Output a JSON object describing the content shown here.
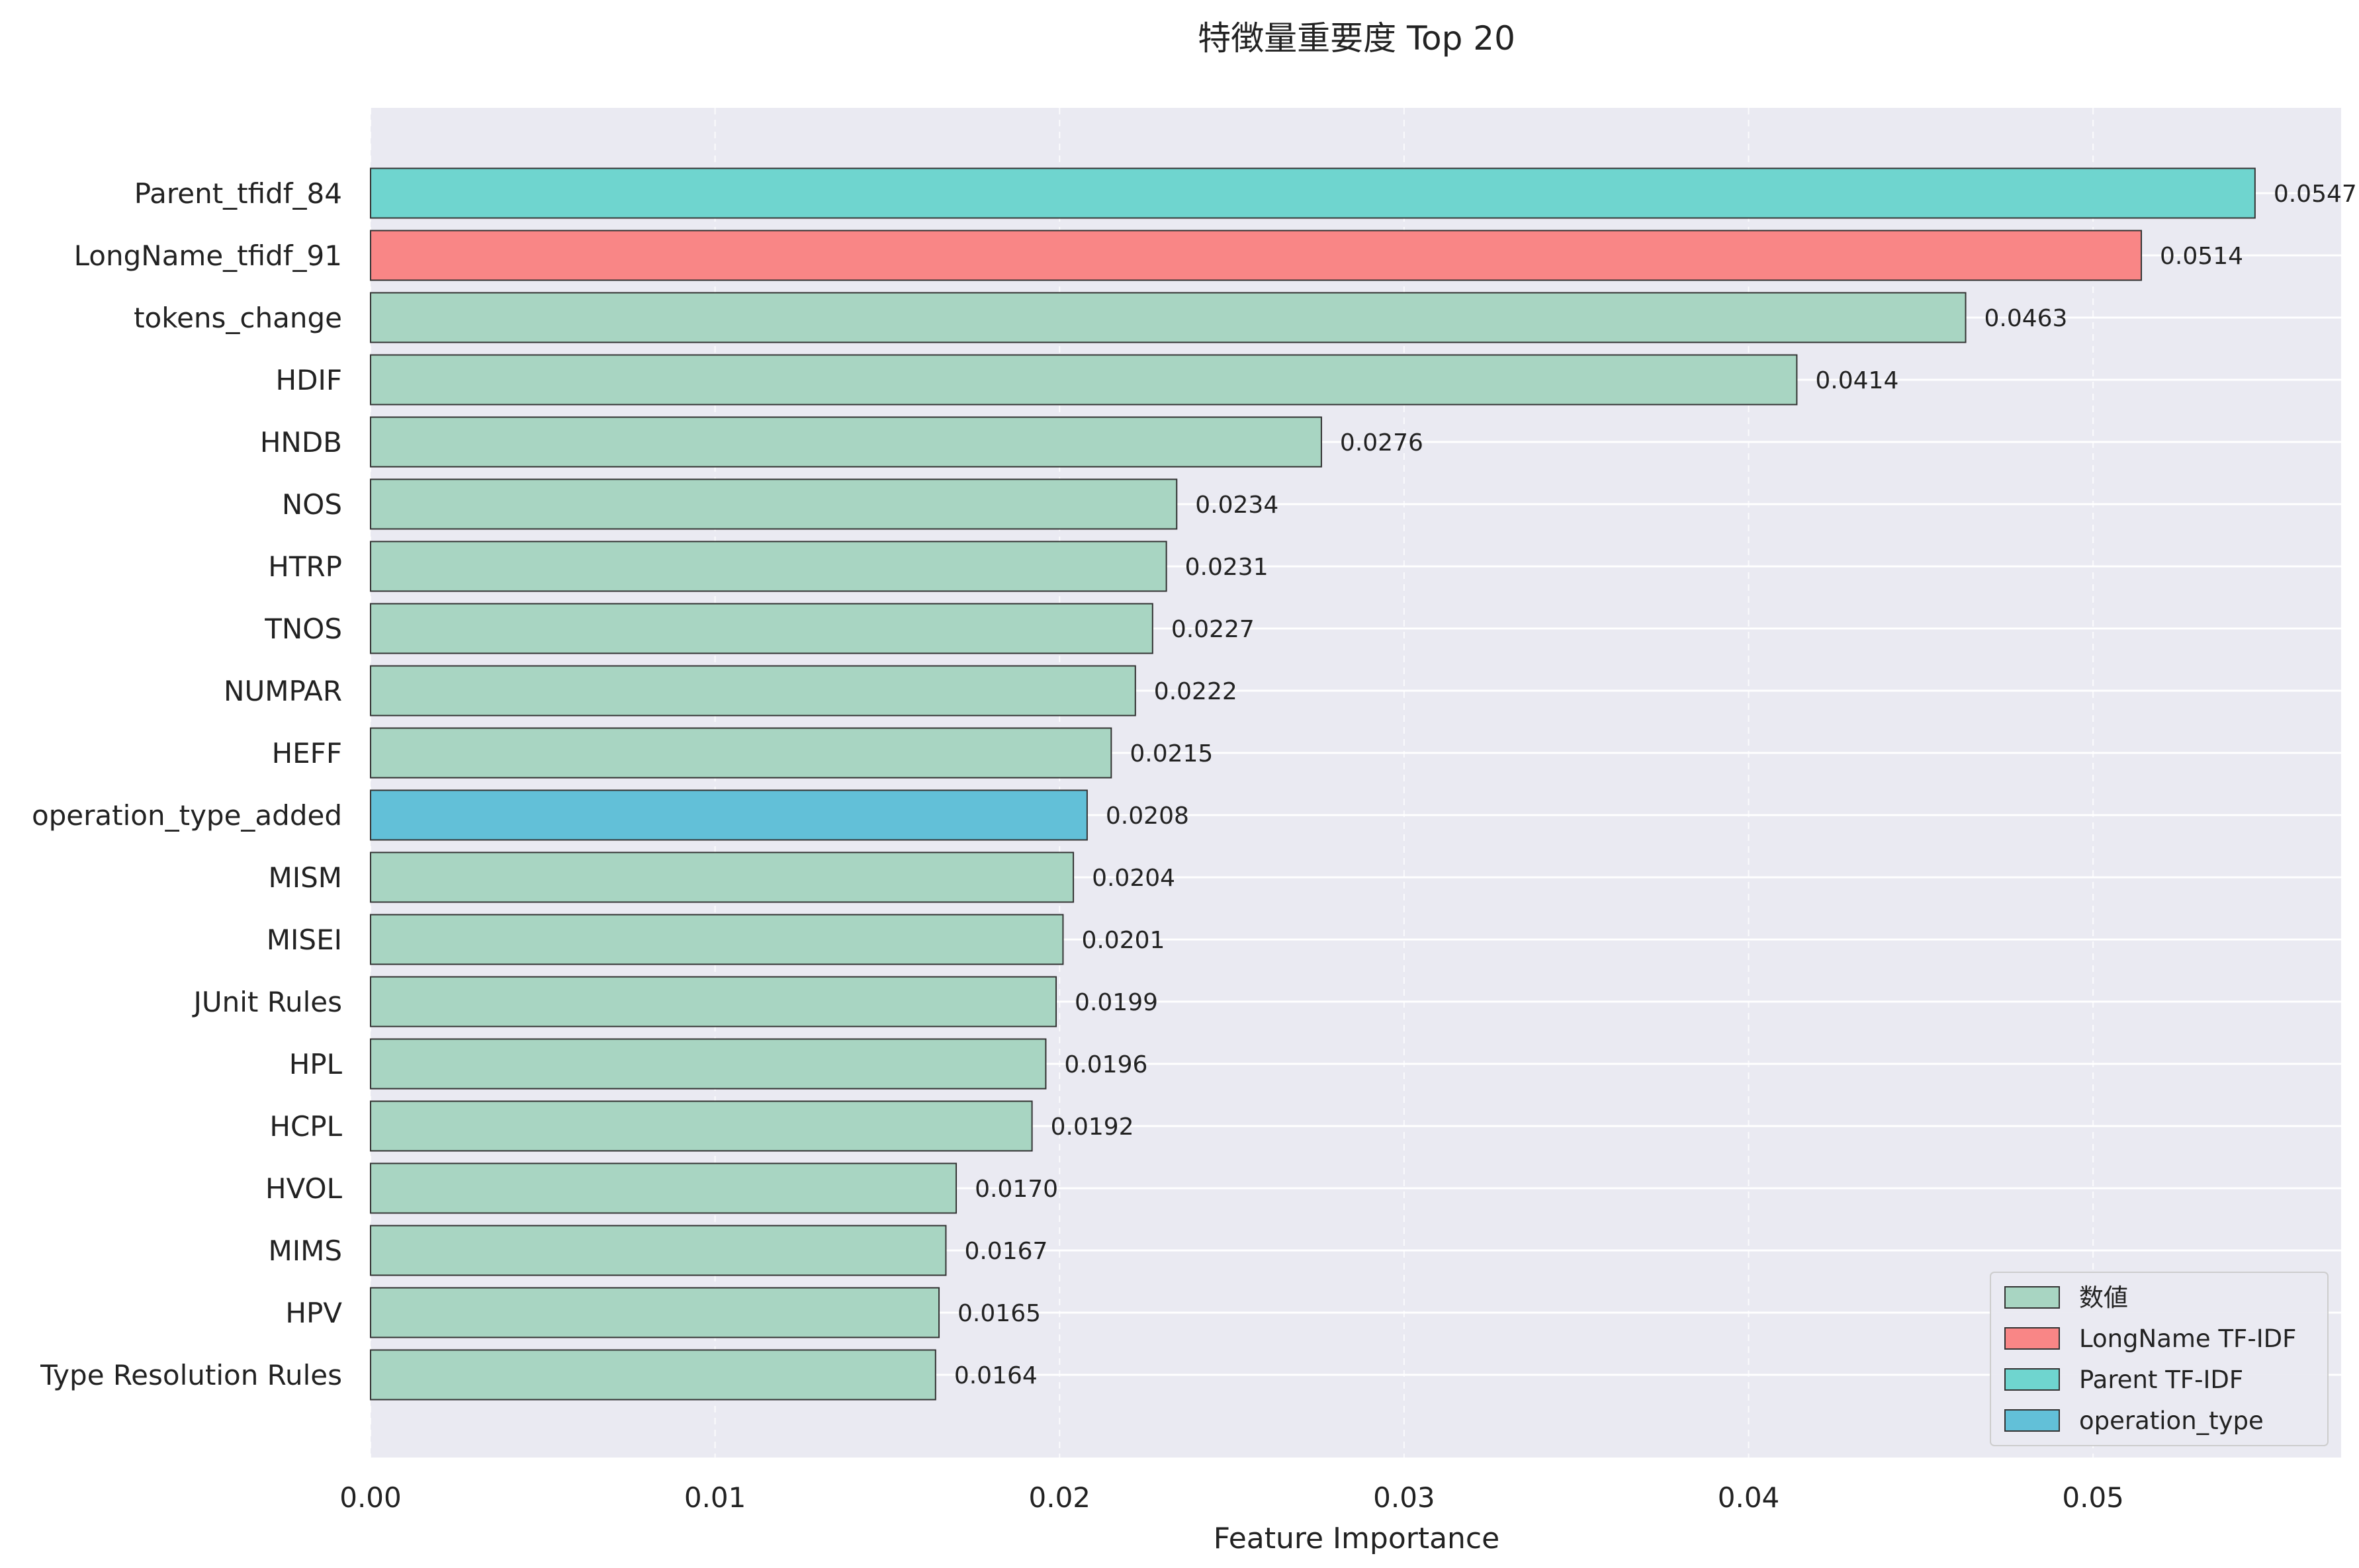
{
  "chart_data": {
    "type": "bar",
    "orientation": "horizontal",
    "title": "特徴量重要度 Top 20",
    "xlabel": "Feature Importance",
    "ylabel": "",
    "xlim": [
      0,
      0.0572
    ],
    "xticks": [
      {
        "value": 0,
        "label": "0.00"
      },
      {
        "value": 0.01,
        "label": "0.01"
      },
      {
        "value": 0.02,
        "label": "0.02"
      },
      {
        "value": 0.03,
        "label": "0.03"
      },
      {
        "value": 0.04,
        "label": "0.04"
      },
      {
        "value": 0.05,
        "label": "0.05"
      }
    ],
    "grid": true,
    "legend_position": "bottom-right",
    "groups": [
      {
        "key": "numeric",
        "name": "数値",
        "color": "#a8d5c2"
      },
      {
        "key": "longname",
        "name": "LongName TF-IDF",
        "color": "#f98686"
      },
      {
        "key": "parent",
        "name": "Parent TF-IDF",
        "color": "#6fd5cf"
      },
      {
        "key": "operation",
        "name": "operation_type",
        "color": "#62c0d8"
      }
    ],
    "bars": [
      {
        "category": "Parent_tfidf_84",
        "value": 0.0547,
        "label": "0.0547",
        "group": "parent"
      },
      {
        "category": "LongName_tfidf_91",
        "value": 0.0514,
        "label": "0.0514",
        "group": "longname"
      },
      {
        "category": "tokens_change",
        "value": 0.0463,
        "label": "0.0463",
        "group": "numeric"
      },
      {
        "category": "HDIF",
        "value": 0.0414,
        "label": "0.0414",
        "group": "numeric"
      },
      {
        "category": "HNDB",
        "value": 0.0276,
        "label": "0.0276",
        "group": "numeric"
      },
      {
        "category": "NOS",
        "value": 0.0234,
        "label": "0.0234",
        "group": "numeric"
      },
      {
        "category": "HTRP",
        "value": 0.0231,
        "label": "0.0231",
        "group": "numeric"
      },
      {
        "category": "TNOS",
        "value": 0.0227,
        "label": "0.0227",
        "group": "numeric"
      },
      {
        "category": "NUMPAR",
        "value": 0.0222,
        "label": "0.0222",
        "group": "numeric"
      },
      {
        "category": "HEFF",
        "value": 0.0215,
        "label": "0.0215",
        "group": "numeric"
      },
      {
        "category": "operation_type_added",
        "value": 0.0208,
        "label": "0.0208",
        "group": "operation"
      },
      {
        "category": "MISM",
        "value": 0.0204,
        "label": "0.0204",
        "group": "numeric"
      },
      {
        "category": "MISEI",
        "value": 0.0201,
        "label": "0.0201",
        "group": "numeric"
      },
      {
        "category": "JUnit Rules",
        "value": 0.0199,
        "label": "0.0199",
        "group": "numeric"
      },
      {
        "category": "HPL",
        "value": 0.0196,
        "label": "0.0196",
        "group": "numeric"
      },
      {
        "category": "HCPL",
        "value": 0.0192,
        "label": "0.0192",
        "group": "numeric"
      },
      {
        "category": "HVOL",
        "value": 0.017,
        "label": "0.0170",
        "group": "numeric"
      },
      {
        "category": "MIMS",
        "value": 0.0167,
        "label": "0.0167",
        "group": "numeric"
      },
      {
        "category": "HPV",
        "value": 0.0165,
        "label": "0.0165",
        "group": "numeric"
      },
      {
        "category": "Type Resolution Rules",
        "value": 0.0164,
        "label": "0.0164",
        "group": "numeric"
      }
    ],
    "colors": {
      "plot_background": "#eaeaf2",
      "grid": "#ffffff",
      "bar_edge": "#333333",
      "text": "#222222"
    }
  }
}
